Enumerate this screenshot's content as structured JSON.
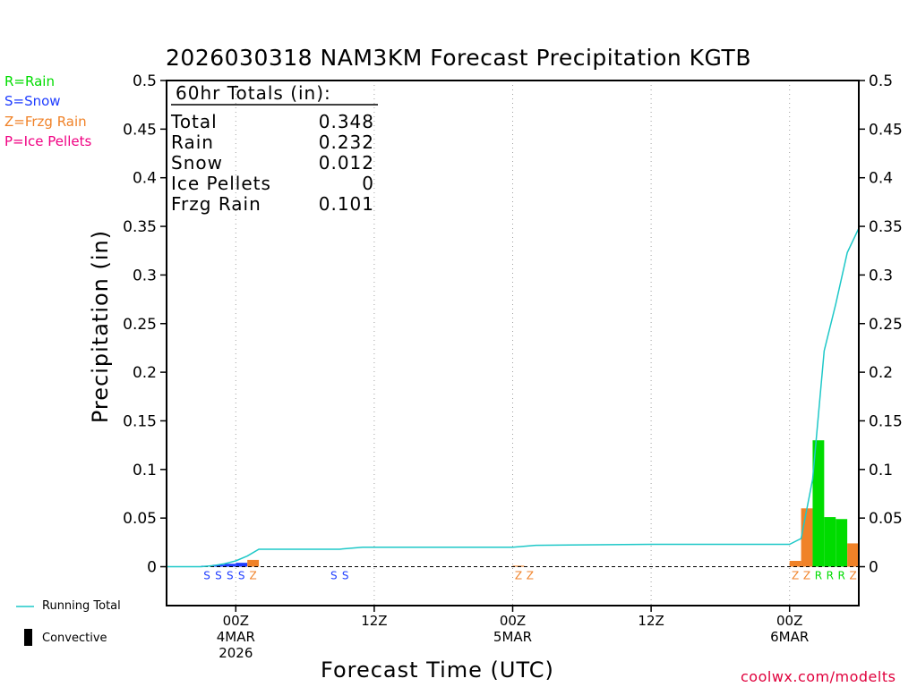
{
  "chart_data": {
    "type": "bar",
    "title": "2026030318 NAM3KM Forecast Precipitation KGTB",
    "xlabel": "Forecast Time (UTC)",
    "ylabel": "Precipitation (in)",
    "ylim": [
      -0.04,
      0.5
    ],
    "yticks": [
      "0",
      "0.05",
      "0.1",
      "0.15",
      "0.2",
      "0.25",
      "0.3",
      "0.35",
      "0.4",
      "0.45",
      "0.5"
    ],
    "xticks": [
      {
        "hour": 6,
        "line1": "00Z",
        "line2": "4MAR",
        "line3": "2026"
      },
      {
        "hour": 18,
        "line1": "12Z",
        "line2": "",
        "line3": ""
      },
      {
        "hour": 30,
        "line1": "00Z",
        "line2": "5MAR",
        "line3": ""
      },
      {
        "hour": 42,
        "line1": "12Z",
        "line2": "",
        "line3": ""
      },
      {
        "hour": 54,
        "line1": "00Z",
        "line2": "6MAR",
        "line3": ""
      }
    ],
    "xrange_hours": [
      0,
      60
    ],
    "type_legend": [
      {
        "code": "R",
        "label": "R=Rain",
        "color": "#00dc00"
      },
      {
        "code": "S",
        "label": "S=Snow",
        "color": "#1e3cff"
      },
      {
        "code": "Z",
        "label": "Z=Frzg Rain",
        "color": "#f08228"
      },
      {
        "code": "P",
        "label": "P=Ice Pellets",
        "color": "#f00082"
      }
    ],
    "totals": {
      "header": "60hr Totals (in):",
      "rows": [
        {
          "label": "Total",
          "value": "0.348"
        },
        {
          "label": "Rain",
          "value": "0.232"
        },
        {
          "label": "Snow",
          "value": "0.012"
        },
        {
          "label": "Ice Pellets",
          "value": "0"
        },
        {
          "label": "Frzg Rain",
          "value": "0.101"
        }
      ]
    },
    "bars": [
      {
        "hour": 4,
        "value": 0.001,
        "type": "S"
      },
      {
        "hour": 5,
        "value": 0.002,
        "type": "S"
      },
      {
        "hour": 6,
        "value": 0.003,
        "type": "S"
      },
      {
        "hour": 7,
        "value": 0.004,
        "type": "S"
      },
      {
        "hour": 8,
        "value": 0.007,
        "type": "Z"
      },
      {
        "hour": 15,
        "value": 0.0,
        "type": "S"
      },
      {
        "hour": 16,
        "value": 0.0,
        "type": "S"
      },
      {
        "hour": 31,
        "value": 0.001,
        "type": "Z"
      },
      {
        "hour": 32,
        "value": 0.0,
        "type": "Z"
      },
      {
        "hour": 55,
        "value": 0.006,
        "type": "Z"
      },
      {
        "hour": 56,
        "value": 0.06,
        "type": "Z"
      },
      {
        "hour": 57,
        "value": 0.13,
        "type": "R"
      },
      {
        "hour": 58,
        "value": 0.051,
        "type": "R"
      },
      {
        "hour": 59,
        "value": 0.049,
        "type": "R"
      },
      {
        "hour": 60,
        "value": 0.024,
        "type": "Z"
      }
    ],
    "running_total": {
      "name": "Running Total",
      "color": "#1ec8c8",
      "x": [
        0,
        3,
        4,
        5,
        6,
        7,
        8,
        15,
        17,
        30,
        32,
        42,
        54,
        55,
        56,
        57,
        58,
        59,
        60
      ],
      "y": [
        0,
        0,
        0.001,
        0.003,
        0.006,
        0.011,
        0.018,
        0.018,
        0.02,
        0.02,
        0.022,
        0.023,
        0.023,
        0.029,
        0.09,
        0.222,
        0.27,
        0.323,
        0.348
      ]
    },
    "convective_label": "Convective"
  },
  "credit": "coolwx.com/modelts"
}
